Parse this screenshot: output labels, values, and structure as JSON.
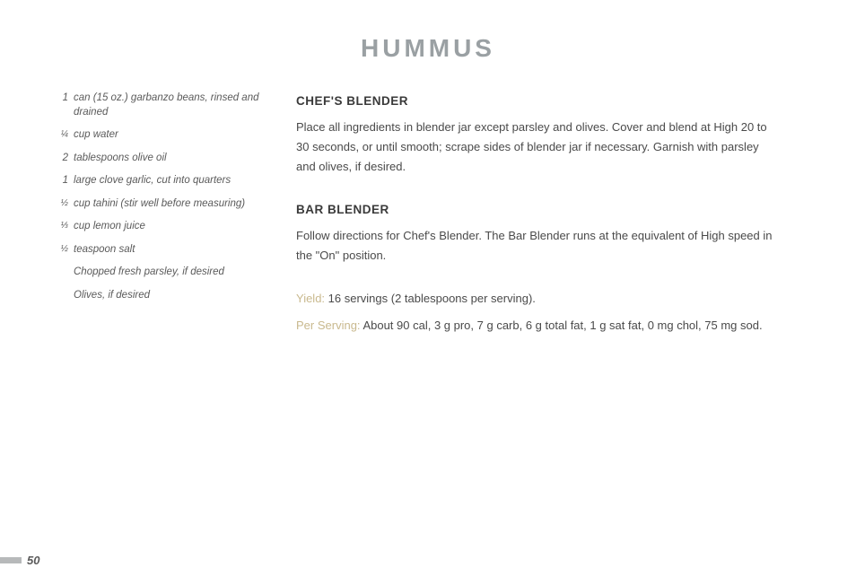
{
  "title": "HUMMUS",
  "pageNumber": "50",
  "ingredients": [
    {
      "qty": "1",
      "text": "can (15 oz.) garbanzo beans, rinsed and drained"
    },
    {
      "qty": "¼",
      "text": "cup water"
    },
    {
      "qty": "2",
      "text": "tablespoons olive oil"
    },
    {
      "qty": "1",
      "text": "large clove garlic, cut into quarters"
    },
    {
      "qty": "½",
      "text": "cup tahini (stir well before measuring)"
    },
    {
      "qty": "⅓",
      "text": "cup lemon juice"
    },
    {
      "qty": "½",
      "text": "teaspoon salt"
    },
    {
      "qty": "",
      "text": "Chopped fresh parsley, if desired"
    },
    {
      "qty": "",
      "text": "Olives, if desired"
    }
  ],
  "sections": [
    {
      "heading": "CHEF'S BLENDER",
      "body": "Place all ingredients in blender jar except parsley and olives. Cover and blend at High 20 to 30 seconds, or until smooth; scrape sides of blender jar if necessary. Garnish with parsley and olives, if desired."
    },
    {
      "heading": "BAR BLENDER",
      "body": "Follow directions for Chef's Blender. The Bar Blender runs at the equivalent of High speed in the \"On\" position."
    }
  ],
  "yieldLabel": "Yield:",
  "yieldText": " 16 servings (2 tablespoons per serving).",
  "perLabel": "Per Serving:",
  "perText": " About 90 cal, 3 g pro, 7 g carb, 6 g total fat, 1 g sat fat, 0 mg chol, 75 mg sod."
}
